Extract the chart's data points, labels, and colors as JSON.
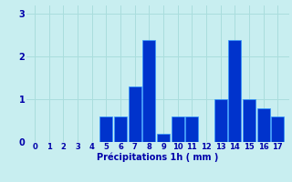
{
  "categories": [
    0,
    1,
    2,
    3,
    4,
    5,
    6,
    7,
    8,
    9,
    10,
    11,
    12,
    13,
    14,
    15,
    16,
    17
  ],
  "values": [
    0,
    0,
    0,
    0,
    0,
    0.6,
    0.6,
    1.3,
    2.4,
    0.2,
    0.6,
    0.6,
    0,
    1.0,
    2.4,
    1.0,
    0.8,
    0.6
  ],
  "bar_color": "#0033cc",
  "bar_edge_color": "#3399ff",
  "background_color": "#c8eef0",
  "grid_color": "#aadddd",
  "text_color": "#0000aa",
  "xlabel": "Précipitations 1h ( mm )",
  "ylim": [
    0,
    3.2
  ],
  "yticks": [
    0,
    1,
    2,
    3
  ],
  "xlim": [
    -0.6,
    17.8
  ],
  "bar_width": 0.9
}
